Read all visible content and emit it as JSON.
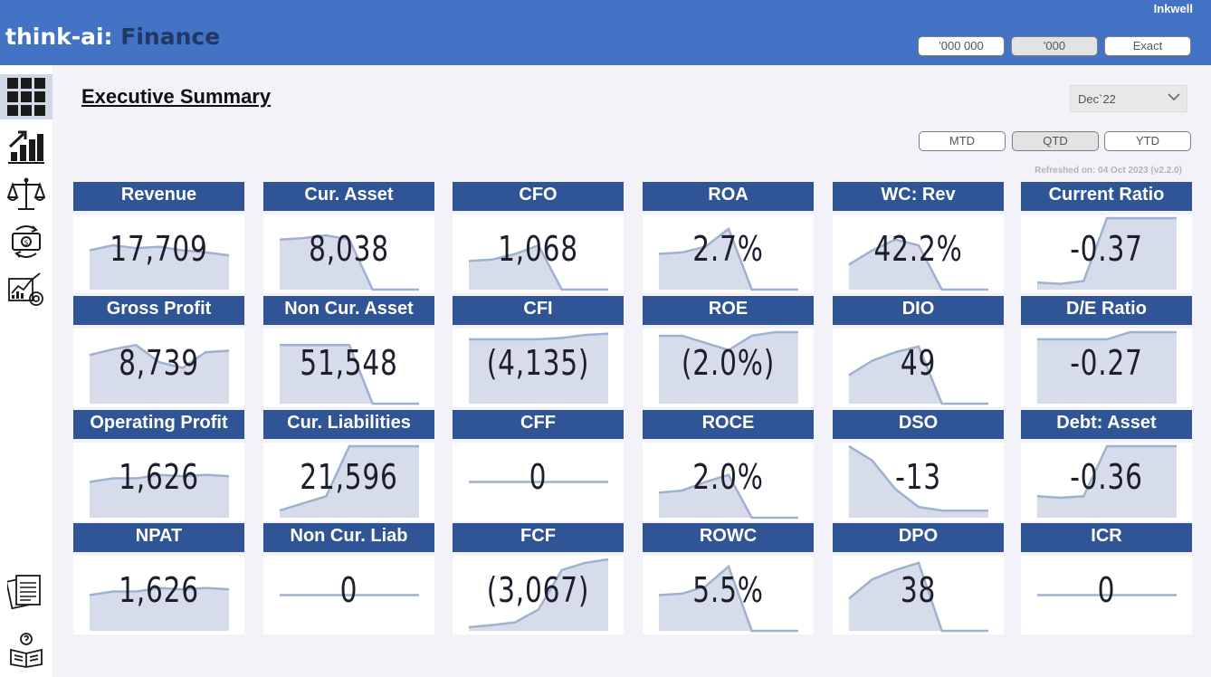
{
  "header": {
    "brand_main": "think-ai:",
    "brand_sub": "Finance",
    "user": "Inkwell",
    "units": [
      {
        "label": "'000 000",
        "active": false
      },
      {
        "label": "'000",
        "active": true
      },
      {
        "label": "Exact",
        "active": false
      }
    ]
  },
  "sidebar": {
    "icons": [
      "dashboard-grid-icon",
      "growth-chart-icon",
      "balance-scale-icon",
      "cash-flow-icon",
      "analytics-icon",
      "documents-icon",
      "help-book-icon"
    ],
    "active_index": 0
  },
  "page": {
    "title": "Executive Summary",
    "period_select": "Dec`22",
    "period_tabs": [
      {
        "label": "MTD",
        "active": false
      },
      {
        "label": "QTD",
        "active": true
      },
      {
        "label": "YTD",
        "active": false
      }
    ],
    "refreshed": "Refreshed on: 04 Oct 2023 (v2.2.0)"
  },
  "colors": {
    "header": "#4472c4",
    "card_title": "#2f5597",
    "spark_fill": "#d6dce9",
    "spark_line": "#9fb1d0"
  },
  "cards": [
    {
      "title": "Revenue",
      "value": "17,709",
      "spark": [
        0.55,
        0.62,
        0.58,
        0.6,
        0.55,
        0.52,
        0.48
      ]
    },
    {
      "title": "Cur. Asset",
      "value": "8,038",
      "spark": [
        0.7,
        0.72,
        0.76,
        0.7,
        0.0,
        0.0,
        0.0
      ]
    },
    {
      "title": "CFO",
      "value": "1,068",
      "spark": [
        0.4,
        0.42,
        0.5,
        0.62,
        0.0,
        0.0,
        0.0
      ]
    },
    {
      "title": "ROA",
      "value": "2.7%",
      "spark": [
        0.5,
        0.52,
        0.6,
        0.85,
        0.0,
        0.0,
        0.0
      ]
    },
    {
      "title": "WC: Rev",
      "value": "42.2%",
      "spark": [
        0.35,
        0.55,
        0.7,
        0.62,
        0.0,
        0.0,
        0.0
      ]
    },
    {
      "title": "Current Ratio",
      "value": "-0.37",
      "spark": [
        0.1,
        0.08,
        0.12,
        1.0,
        1.0,
        1.0,
        1.0
      ]
    },
    {
      "title": "Gross Profit",
      "value": "8,739",
      "spark": [
        0.68,
        0.76,
        0.82,
        0.58,
        0.5,
        0.72,
        0.74
      ]
    },
    {
      "title": "Non Cur. Asset",
      "value": "51,548",
      "spark": [
        0.82,
        0.82,
        0.82,
        0.82,
        0.0,
        0.0,
        0.0
      ]
    },
    {
      "title": "CFI",
      "value": "(4,135)",
      "spark": [
        0.9,
        0.9,
        0.9,
        0.9,
        0.92,
        0.96,
        0.98
      ]
    },
    {
      "title": "ROE",
      "value": "(2.0%)",
      "spark": [
        0.95,
        0.95,
        0.85,
        0.75,
        0.95,
        1.0,
        1.0
      ]
    },
    {
      "title": "DIO",
      "value": "49",
      "spark": [
        0.4,
        0.6,
        0.72,
        0.8,
        0.0,
        0.0,
        0.0
      ]
    },
    {
      "title": "D/E Ratio",
      "value": "-0.27",
      "spark": [
        0.9,
        0.9,
        0.9,
        0.9,
        1.0,
        1.0,
        1.0
      ]
    },
    {
      "title": "Operating Profit",
      "value": "1,626",
      "spark": [
        0.5,
        0.55,
        0.55,
        0.6,
        0.58,
        0.6,
        0.58
      ]
    },
    {
      "title": "Cur. Liabilities",
      "value": "21,596",
      "spark": [
        0.1,
        0.2,
        0.3,
        1.0,
        1.0,
        1.0,
        1.0
      ]
    },
    {
      "title": "CFF",
      "value": "0",
      "spark": [
        0.5,
        0.5,
        0.5,
        0.5,
        0.5,
        0.5,
        0.5
      ]
    },
    {
      "title": "ROCE",
      "value": "2.0%",
      "spark": [
        0.35,
        0.38,
        0.5,
        0.6,
        0.0,
        0.0,
        0.0
      ]
    },
    {
      "title": "DSO",
      "value": "-13",
      "spark": [
        1.0,
        0.8,
        0.4,
        0.15,
        0.1,
        0.1,
        0.1
      ]
    },
    {
      "title": "Debt: Asset",
      "value": "-0.36",
      "spark": [
        0.3,
        0.28,
        0.3,
        1.0,
        1.0,
        1.0,
        1.0
      ]
    },
    {
      "title": "NPAT",
      "value": "1,626",
      "spark": [
        0.5,
        0.55,
        0.55,
        0.6,
        0.58,
        0.6,
        0.58
      ]
    },
    {
      "title": "Non Cur. Liab",
      "value": "0",
      "spark": [
        0.5,
        0.5,
        0.5,
        0.5,
        0.5,
        0.5,
        0.5
      ]
    },
    {
      "title": "FCF",
      "value": "(3,067)",
      "spark": [
        0.05,
        0.08,
        0.12,
        0.3,
        0.85,
        0.95,
        1.0
      ]
    },
    {
      "title": "ROWC",
      "value": "5.5%",
      "spark": [
        0.5,
        0.52,
        0.62,
        0.9,
        0.0,
        0.0,
        0.0
      ]
    },
    {
      "title": "DPO",
      "value": "38",
      "spark": [
        0.45,
        0.72,
        0.85,
        0.95,
        0.0,
        0.0,
        0.0
      ]
    },
    {
      "title": "ICR",
      "value": "0",
      "spark": [
        0.5,
        0.5,
        0.5,
        0.5,
        0.5,
        0.5,
        0.5
      ]
    }
  ]
}
